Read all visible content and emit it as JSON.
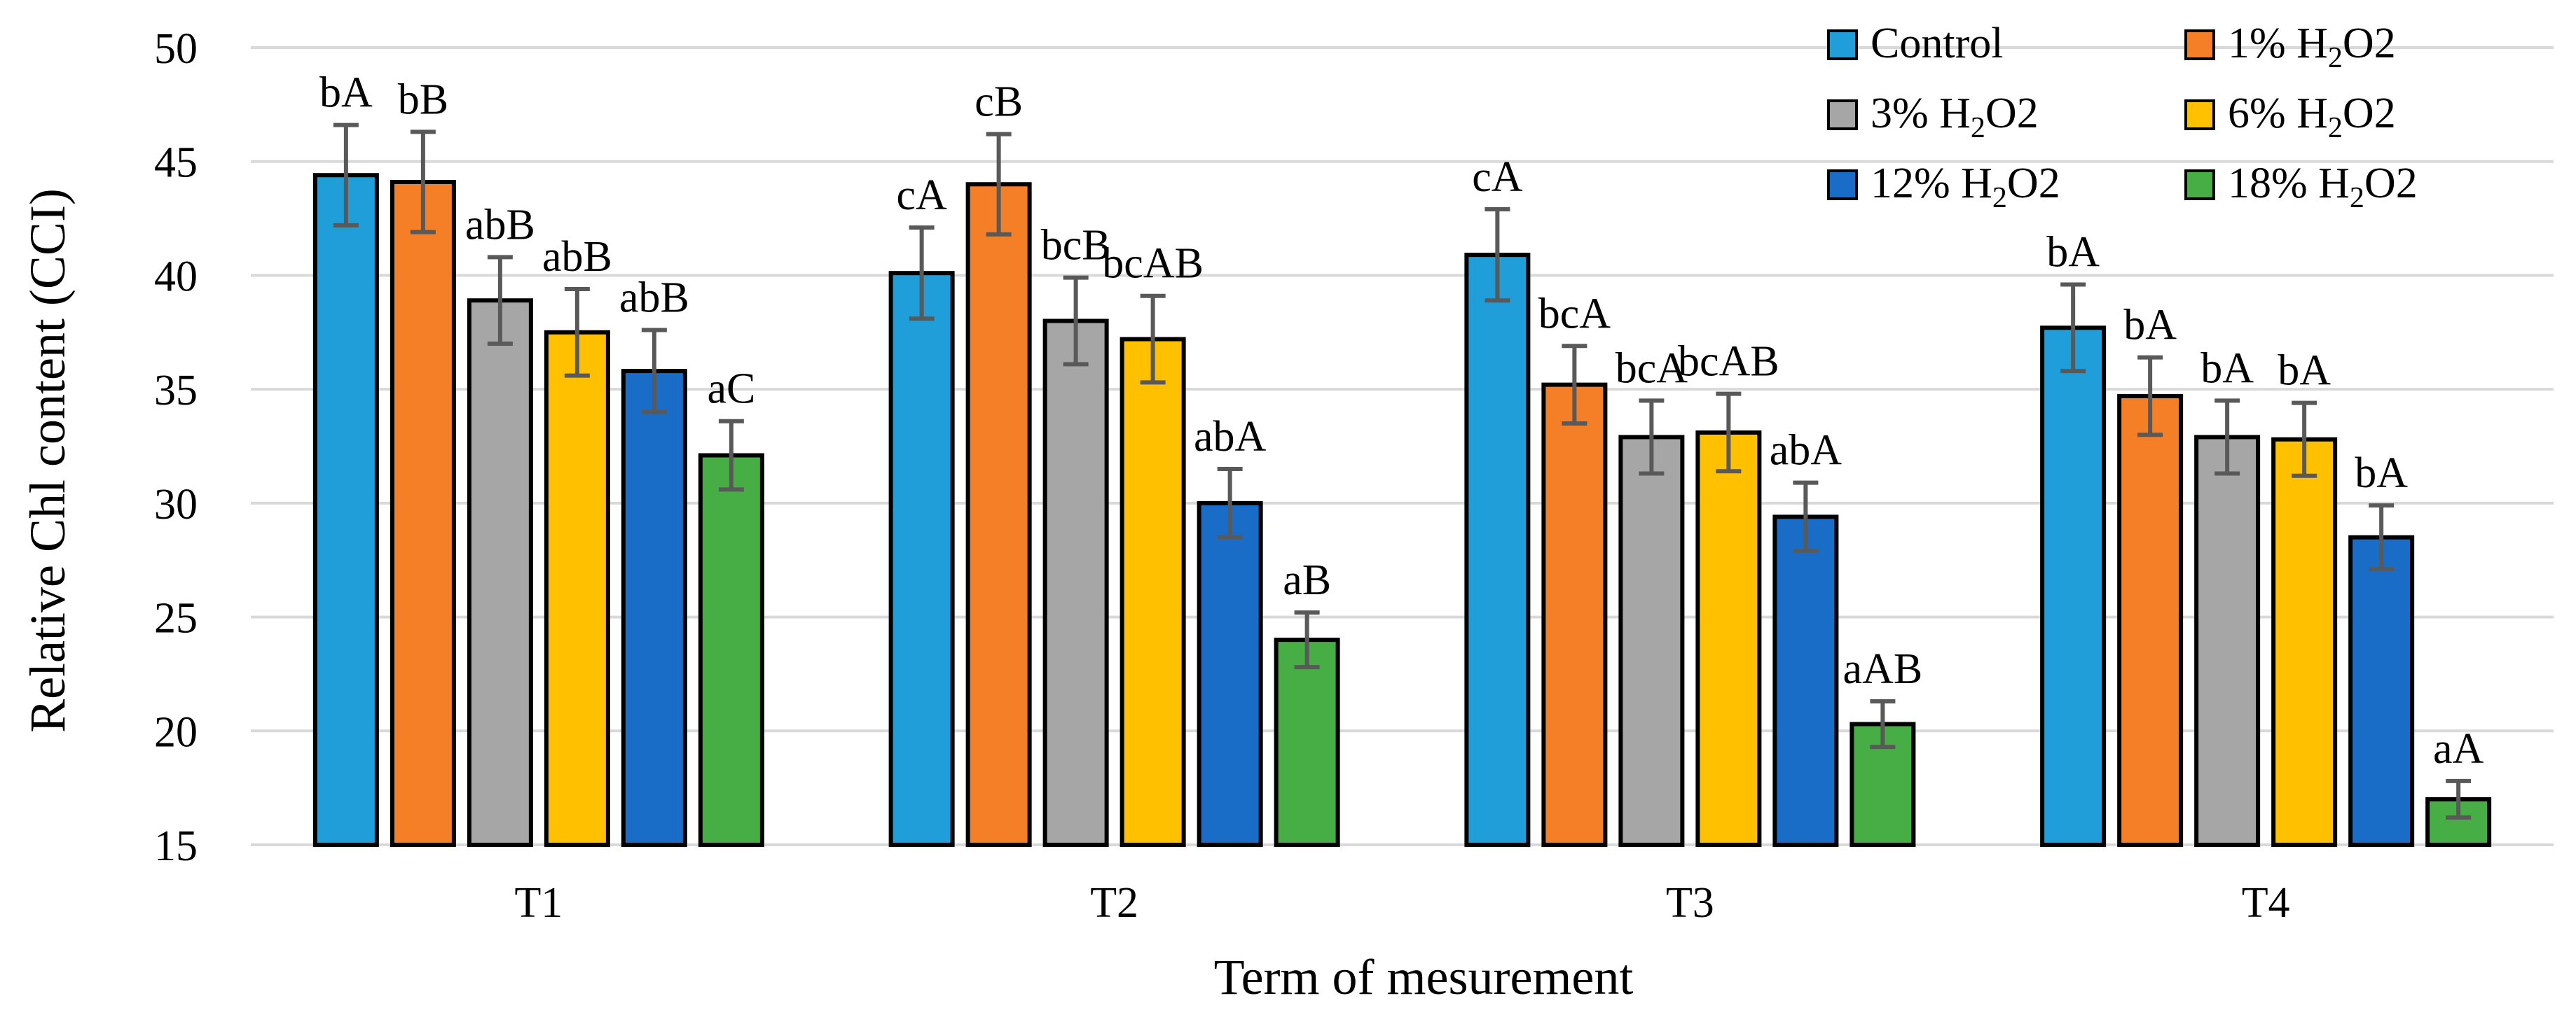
{
  "chart_data": {
    "type": "bar",
    "title": "",
    "xlabel": "Term of mesurement",
    "ylabel": "Relative Chl content (CCI)",
    "ylim": [
      15,
      50
    ],
    "yticks": [
      15,
      20,
      25,
      30,
      35,
      40,
      45,
      50
    ],
    "grid": true,
    "legend_position": "top-right",
    "categories": [
      "T1",
      "T2",
      "T3",
      "T4"
    ],
    "series": [
      {
        "name": "Control",
        "label_main": "Control",
        "label_sub": "",
        "label_tail": "",
        "color": "#1F9ED9",
        "values": [
          44.4,
          40.1,
          40.9,
          37.7
        ],
        "errors": [
          2.2,
          2.0,
          2.0,
          1.9
        ],
        "labels": [
          "bA",
          "cA",
          "cA",
          "bA"
        ]
      },
      {
        "name": "1% H2O2",
        "label_main": "1% H",
        "label_sub": "2",
        "label_tail": "O2",
        "color": "#F57F27",
        "values": [
          44.1,
          44.0,
          35.2,
          34.7
        ],
        "errors": [
          2.2,
          2.2,
          1.7,
          1.7
        ],
        "labels": [
          "bB",
          "cB",
          "bcA",
          "bA"
        ]
      },
      {
        "name": "3% H2O2",
        "label_main": "3% H",
        "label_sub": "2",
        "label_tail": "O2",
        "color": "#A6A6A6",
        "values": [
          38.9,
          38.0,
          32.9,
          32.9
        ],
        "errors": [
          1.9,
          1.9,
          1.6,
          1.6
        ],
        "labels": [
          "abB",
          "bcB",
          "bcA",
          "bA"
        ]
      },
      {
        "name": "6% H2O2",
        "label_main": "6% H",
        "label_sub": "2",
        "label_tail": "O2",
        "color": "#FFC000",
        "values": [
          37.5,
          37.2,
          33.1,
          32.8
        ],
        "errors": [
          1.9,
          1.9,
          1.7,
          1.6
        ],
        "labels": [
          "abB",
          "bcAB",
          "bcAB",
          "bA"
        ]
      },
      {
        "name": "12% H2O2",
        "label_main": "12% H",
        "label_sub": "2",
        "label_tail": "O2",
        "color": "#1A6DC7",
        "values": [
          35.8,
          30.0,
          29.4,
          28.5
        ],
        "errors": [
          1.8,
          1.5,
          1.5,
          1.4
        ],
        "labels": [
          "abB",
          "abA",
          "abA",
          "bA"
        ]
      },
      {
        "name": "18% H2O2",
        "label_main": "18% H",
        "label_sub": "2",
        "label_tail": "O2",
        "color": "#46AE45",
        "values": [
          32.1,
          24.0,
          20.3,
          17.0
        ],
        "errors": [
          1.5,
          1.2,
          1.0,
          0.8
        ],
        "labels": [
          "aC",
          "aB",
          "aAB",
          "aA"
        ]
      }
    ]
  }
}
